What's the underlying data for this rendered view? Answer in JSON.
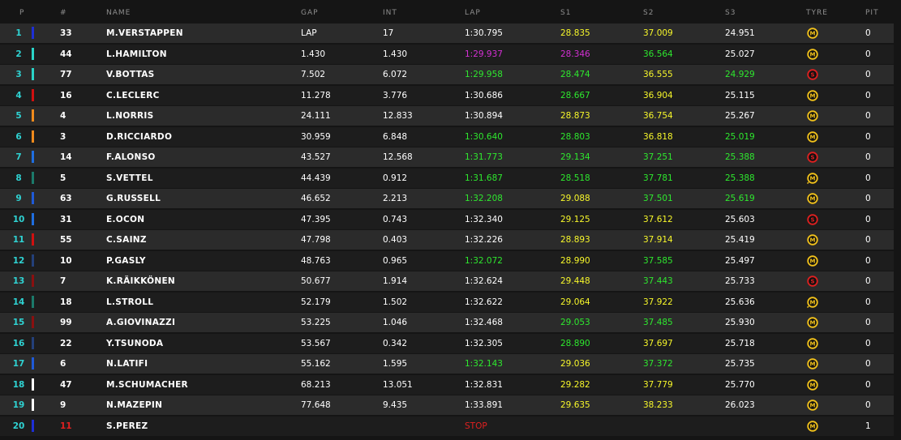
{
  "headers": {
    "pos": "P",
    "num": "#",
    "name": "NAME",
    "gap": "GAP",
    "int": "INT",
    "lap": "LAP",
    "s1": "S1",
    "s2": "S2",
    "s3": "S3",
    "tyre": "TYRE",
    "pit": "PIT"
  },
  "colors": {
    "white": "#ffffff",
    "green": "#2ee82e",
    "yellow": "#f7f72a",
    "purple": "#d42fd4",
    "red": "#e02020",
    "position": "#2fd3d3"
  },
  "rows": [
    {
      "pos": "1",
      "num": "33",
      "name": "M.VERSTAPPEN",
      "gap": "LAP",
      "int": "17",
      "lap": "1:30.795",
      "lap_c": "white",
      "s1": "28.835",
      "s1_c": "yellow",
      "s2": "37.009",
      "s2_c": "yellow",
      "s3": "24.951",
      "s3_c": "white",
      "tyre": "M",
      "tyre_icon": "medium-tyre-icon",
      "pit": "0",
      "team_color": "#1e2fd6"
    },
    {
      "pos": "2",
      "num": "44",
      "name": "L.HAMILTON",
      "gap": "1.430",
      "int": "1.430",
      "lap": "1:29.937",
      "lap_c": "purple",
      "s1": "28.346",
      "s1_c": "purple",
      "s2": "36.564",
      "s2_c": "green",
      "s3": "25.027",
      "s3_c": "white",
      "tyre": "M",
      "tyre_icon": "medium-tyre-icon",
      "pit": "0",
      "team_color": "#2ad4c8"
    },
    {
      "pos": "3",
      "num": "77",
      "name": "V.BOTTAS",
      "gap": "7.502",
      "int": "6.072",
      "lap": "1:29.958",
      "lap_c": "green",
      "s1": "28.474",
      "s1_c": "green",
      "s2": "36.555",
      "s2_c": "yellow",
      "s3": "24.929",
      "s3_c": "green",
      "tyre": "S",
      "tyre_icon": "soft-tyre-icon",
      "pit": "0",
      "team_color": "#2ad4c8"
    },
    {
      "pos": "4",
      "num": "16",
      "name": "C.LECLERC",
      "gap": "11.278",
      "int": "3.776",
      "lap": "1:30.686",
      "lap_c": "white",
      "s1": "28.667",
      "s1_c": "green",
      "s2": "36.904",
      "s2_c": "yellow",
      "s3": "25.115",
      "s3_c": "white",
      "tyre": "M",
      "tyre_icon": "medium-tyre-icon",
      "pit": "0",
      "team_color": "#d01010"
    },
    {
      "pos": "5",
      "num": "4",
      "name": "L.NORRIS",
      "gap": "24.111",
      "int": "12.833",
      "lap": "1:30.894",
      "lap_c": "white",
      "s1": "28.873",
      "s1_c": "yellow",
      "s2": "36.754",
      "s2_c": "yellow",
      "s3": "25.267",
      "s3_c": "white",
      "tyre": "M",
      "tyre_icon": "medium-tyre-icon",
      "pit": "0",
      "team_color": "#f08a1c"
    },
    {
      "pos": "6",
      "num": "3",
      "name": "D.RICCIARDO",
      "gap": "30.959",
      "int": "6.848",
      "lap": "1:30.640",
      "lap_c": "green",
      "s1": "28.803",
      "s1_c": "green",
      "s2": "36.818",
      "s2_c": "yellow",
      "s3": "25.019",
      "s3_c": "green",
      "tyre": "M",
      "tyre_icon": "medium-tyre-icon",
      "pit": "0",
      "team_color": "#f08a1c"
    },
    {
      "pos": "7",
      "num": "14",
      "name": "F.ALONSO",
      "gap": "43.527",
      "int": "12.568",
      "lap": "1:31.773",
      "lap_c": "green",
      "s1": "29.134",
      "s1_c": "green",
      "s2": "37.251",
      "s2_c": "green",
      "s3": "25.388",
      "s3_c": "green",
      "tyre": "S",
      "tyre_icon": "soft-tyre-icon",
      "pit": "0",
      "team_color": "#1f6ee0"
    },
    {
      "pos": "8",
      "num": "5",
      "name": "S.VETTEL",
      "gap": "44.439",
      "int": "0.912",
      "lap": "1:31.687",
      "lap_c": "green",
      "s1": "28.518",
      "s1_c": "green",
      "s2": "37.781",
      "s2_c": "green",
      "s3": "25.388",
      "s3_c": "green",
      "tyre": "M",
      "tyre_icon": "medium-tyre-new-icon",
      "pit": "0",
      "team_color": "#1b7a6a"
    },
    {
      "pos": "9",
      "num": "63",
      "name": "G.RUSSELL",
      "gap": "46.652",
      "int": "2.213",
      "lap": "1:32.208",
      "lap_c": "green",
      "s1": "29.088",
      "s1_c": "yellow",
      "s2": "37.501",
      "s2_c": "green",
      "s3": "25.619",
      "s3_c": "green",
      "tyre": "M",
      "tyre_icon": "medium-tyre-icon",
      "pit": "0",
      "team_color": "#1f5ad8"
    },
    {
      "pos": "10",
      "num": "31",
      "name": "E.OCON",
      "gap": "47.395",
      "int": "0.743",
      "lap": "1:32.340",
      "lap_c": "white",
      "s1": "29.125",
      "s1_c": "yellow",
      "s2": "37.612",
      "s2_c": "yellow",
      "s3": "25.603",
      "s3_c": "white",
      "tyre": "S",
      "tyre_icon": "soft-tyre-icon",
      "pit": "0",
      "team_color": "#1f6ee0"
    },
    {
      "pos": "11",
      "num": "55",
      "name": "C.SAINZ",
      "gap": "47.798",
      "int": "0.403",
      "lap": "1:32.226",
      "lap_c": "white",
      "s1": "28.893",
      "s1_c": "yellow",
      "s2": "37.914",
      "s2_c": "yellow",
      "s3": "25.419",
      "s3_c": "white",
      "tyre": "M",
      "tyre_icon": "medium-tyre-icon",
      "pit": "0",
      "team_color": "#d01010"
    },
    {
      "pos": "12",
      "num": "10",
      "name": "P.GASLY",
      "gap": "48.763",
      "int": "0.965",
      "lap": "1:32.072",
      "lap_c": "green",
      "s1": "28.990",
      "s1_c": "yellow",
      "s2": "37.585",
      "s2_c": "green",
      "s3": "25.497",
      "s3_c": "white",
      "tyre": "M",
      "tyre_icon": "medium-tyre-icon",
      "pit": "0",
      "team_color": "#24407a"
    },
    {
      "pos": "13",
      "num": "7",
      "name": "K.RÄIKKÖNEN",
      "gap": "50.677",
      "int": "1.914",
      "lap": "1:32.624",
      "lap_c": "white",
      "s1": "29.448",
      "s1_c": "yellow",
      "s2": "37.443",
      "s2_c": "green",
      "s3": "25.733",
      "s3_c": "white",
      "tyre": "S",
      "tyre_icon": "soft-tyre-icon",
      "pit": "0",
      "team_color": "#8a1010"
    },
    {
      "pos": "14",
      "num": "18",
      "name": "L.STROLL",
      "gap": "52.179",
      "int": "1.502",
      "lap": "1:32.622",
      "lap_c": "white",
      "s1": "29.064",
      "s1_c": "yellow",
      "s2": "37.922",
      "s2_c": "yellow",
      "s3": "25.636",
      "s3_c": "white",
      "tyre": "M",
      "tyre_icon": "medium-tyre-new-icon",
      "pit": "0",
      "team_color": "#1b7a6a"
    },
    {
      "pos": "15",
      "num": "99",
      "name": "A.GIOVINAZZI",
      "gap": "53.225",
      "int": "1.046",
      "lap": "1:32.468",
      "lap_c": "white",
      "s1": "29.053",
      "s1_c": "green",
      "s2": "37.485",
      "s2_c": "green",
      "s3": "25.930",
      "s3_c": "white",
      "tyre": "M",
      "tyre_icon": "medium-tyre-icon",
      "pit": "0",
      "team_color": "#8a1010"
    },
    {
      "pos": "16",
      "num": "22",
      "name": "Y.TSUNODA",
      "gap": "53.567",
      "int": "0.342",
      "lap": "1:32.305",
      "lap_c": "white",
      "s1": "28.890",
      "s1_c": "green",
      "s2": "37.697",
      "s2_c": "yellow",
      "s3": "25.718",
      "s3_c": "white",
      "tyre": "M",
      "tyre_icon": "medium-tyre-icon",
      "pit": "0",
      "team_color": "#24407a"
    },
    {
      "pos": "17",
      "num": "6",
      "name": "N.LATIFI",
      "gap": "55.162",
      "int": "1.595",
      "lap": "1:32.143",
      "lap_c": "green",
      "s1": "29.036",
      "s1_c": "yellow",
      "s2": "37.372",
      "s2_c": "green",
      "s3": "25.735",
      "s3_c": "white",
      "tyre": "M",
      "tyre_icon": "medium-tyre-icon",
      "pit": "0",
      "team_color": "#1f5ad8"
    },
    {
      "pos": "18",
      "num": "47",
      "name": "M.SCHUMACHER",
      "gap": "68.213",
      "int": "13.051",
      "lap": "1:32.831",
      "lap_c": "white",
      "s1": "29.282",
      "s1_c": "yellow",
      "s2": "37.779",
      "s2_c": "yellow",
      "s3": "25.770",
      "s3_c": "white",
      "tyre": "M",
      "tyre_icon": "medium-tyre-icon",
      "pit": "0",
      "team_color": "#ffffff"
    },
    {
      "pos": "19",
      "num": "9",
      "name": "N.MAZEPIN",
      "gap": "77.648",
      "int": "9.435",
      "lap": "1:33.891",
      "lap_c": "white",
      "s1": "29.635",
      "s1_c": "yellow",
      "s2": "38.233",
      "s2_c": "yellow",
      "s3": "26.023",
      "s3_c": "white",
      "tyre": "M",
      "tyre_icon": "medium-tyre-icon",
      "pit": "0",
      "team_color": "#ffffff"
    },
    {
      "pos": "20",
      "num": "11",
      "num_c": "red",
      "name": "S.PEREZ",
      "gap": "",
      "int": "",
      "lap": "STOP",
      "lap_c": "red",
      "s1": "",
      "s1_c": "white",
      "s2": "",
      "s2_c": "white",
      "s3": "",
      "s3_c": "white",
      "tyre": "M",
      "tyre_icon": "medium-tyre-icon",
      "pit": "1",
      "team_color": "#1e2fd6"
    }
  ]
}
